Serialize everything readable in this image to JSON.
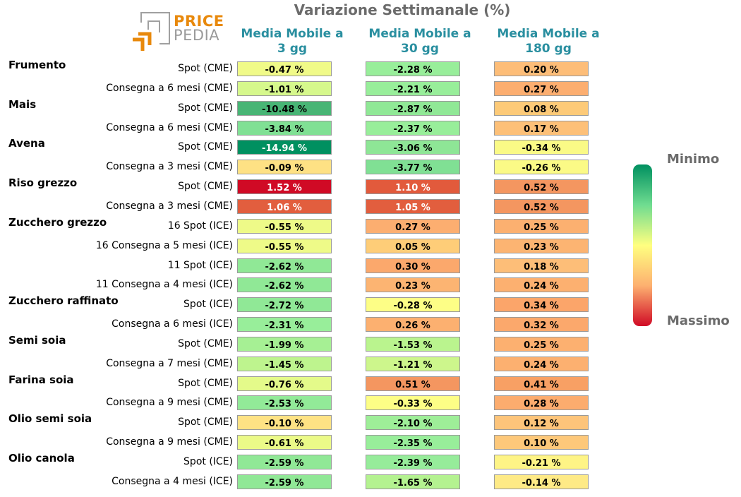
{
  "title": "Variazione Settimanale (%)",
  "logo": {
    "line1": "PRICE",
    "line2": "PEDIA"
  },
  "columns": [
    "Media Mobile a\n3 gg",
    "Media Mobile a\n30 gg",
    "Media Mobile a\n180 gg"
  ],
  "legend": {
    "min_label": "Minimo",
    "max_label": "Massimo",
    "colors": [
      "#009060",
      "#6fdc90",
      "#ffff80",
      "#fdb070",
      "#d00a25"
    ]
  },
  "chart_data": {
    "type": "table",
    "title": "Variazione Settimanale (%)",
    "columns": [
      "Media Mobile a 3 gg",
      "Media Mobile a 30 gg",
      "Media Mobile a 180 gg"
    ],
    "rows": [
      {
        "group": "Frumento",
        "label": "Spot (CME)",
        "display": [
          "-0.47 %",
          "-2.28 %",
          "0.20 %"
        ],
        "colors": [
          "#f0fa88",
          "#98ee9a",
          "#fdbd78"
        ]
      },
      {
        "group": "",
        "label": "Consegna a 6 mesi (CME)",
        "display": [
          "-1.01 %",
          "-2.21 %",
          "0.27 %"
        ],
        "colors": [
          "#d6f88c",
          "#98ee9a",
          "#fcae70"
        ]
      },
      {
        "group": "Mais",
        "label": "Spot (CME)",
        "display": [
          "-10.48 %",
          "-2.87 %",
          "0.08 %"
        ],
        "colors": [
          "#48b575",
          "#90e896",
          "#fdca78"
        ]
      },
      {
        "group": "",
        "label": "Consegna a 6 mesi (CME)",
        "display": [
          "-3.84 %",
          "-2.37 %",
          "0.17 %"
        ],
        "colors": [
          "#80e094",
          "#98ee9a",
          "#fdc078"
        ]
      },
      {
        "group": "Avena",
        "label": "Spot (CME)",
        "display": [
          "-14.94 %",
          "-3.06 %",
          "-0.34 %"
        ],
        "colors": [
          "#009060",
          "#8ee696",
          "#fafa86"
        ]
      },
      {
        "group": "",
        "label": "Consegna a 3 mesi (CME)",
        "display": [
          "-0.09 %",
          "-3.77 %",
          "-0.26 %"
        ],
        "colors": [
          "#fee184",
          "#80e094",
          "#fbfa86"
        ]
      },
      {
        "group": "Riso grezzo",
        "label": "Spot (CME)",
        "display": [
          "1.52 %",
          "1.10 %",
          "0.52 %"
        ],
        "colors": [
          "#d00a25",
          "#e25a3c",
          "#f49660"
        ]
      },
      {
        "group": "",
        "label": "Consegna a 3 mesi (CME)",
        "display": [
          "1.06 %",
          "1.05 %",
          "0.52 %"
        ],
        "colors": [
          "#e25e3e",
          "#e25e3e",
          "#f49660"
        ]
      },
      {
        "group": "Zucchero grezzo",
        "label": "16 Spot (ICE)",
        "display": [
          "-0.55 %",
          "0.27 %",
          "0.25 %"
        ],
        "colors": [
          "#eefa88",
          "#fcae70",
          "#fcb070"
        ]
      },
      {
        "group": "",
        "label": "16 Consegna a 5 mesi (ICE)",
        "display": [
          "-0.55 %",
          "0.05 %",
          "0.23 %"
        ],
        "colors": [
          "#eefa88",
          "#fecd78",
          "#fcb472"
        ]
      },
      {
        "group": "",
        "label": "11 Spot (ICE)",
        "display": [
          "-2.62 %",
          "0.30 %",
          "0.18 %"
        ],
        "colors": [
          "#90e896",
          "#fba86c",
          "#fdbe78"
        ]
      },
      {
        "group": "",
        "label": "11 Consegna a 4 mesi (ICE)",
        "display": [
          "-2.62 %",
          "0.23 %",
          "0.24 %"
        ],
        "colors": [
          "#90e896",
          "#fcb472",
          "#fcb070"
        ]
      },
      {
        "group": "Zucchero raffinato",
        "label": "Spot (ICE)",
        "display": [
          "-2.72 %",
          "-0.28 %",
          "0.34 %"
        ],
        "colors": [
          "#90e896",
          "#fdfe86",
          "#fba56a"
        ]
      },
      {
        "group": "",
        "label": "Consegna a 6 mesi (ICE)",
        "display": [
          "-2.31 %",
          "0.26 %",
          "0.32 %"
        ],
        "colors": [
          "#98ee9a",
          "#fcb070",
          "#fba86c"
        ]
      },
      {
        "group": "Semi soia",
        "label": "Spot (CME)",
        "display": [
          "-1.99 %",
          "-1.53 %",
          "0.25 %"
        ],
        "colors": [
          "#a6f094",
          "#baf48e",
          "#fcb070"
        ]
      },
      {
        "group": "",
        "label": "Consegna a 7 mesi (CME)",
        "display": [
          "-1.45 %",
          "-1.21 %",
          "0.24 %"
        ],
        "colors": [
          "#bef48e",
          "#cdf68c",
          "#fcb070"
        ]
      },
      {
        "group": "Farina soia",
        "label": "Spot (CME)",
        "display": [
          "-0.76 %",
          "0.51 %",
          "0.41 %"
        ],
        "colors": [
          "#e4fa8a",
          "#f49660",
          "#f8a064"
        ]
      },
      {
        "group": "",
        "label": "Consegna a 9 mesi (CME)",
        "display": [
          "-2.53 %",
          "-0.33 %",
          "0.28 %"
        ],
        "colors": [
          "#92ea98",
          "#fdfe86",
          "#fcac6e"
        ]
      },
      {
        "group": "Olio semi soia",
        "label": "Spot (CME)",
        "display": [
          "-0.10 %",
          "-2.10 %",
          "0.12 %"
        ],
        "colors": [
          "#fee284",
          "#9eee98",
          "#fdc47a"
        ]
      },
      {
        "group": "",
        "label": "Consegna a 9 mesi (CME)",
        "display": [
          "-0.61 %",
          "-2.35 %",
          "0.10 %"
        ],
        "colors": [
          "#ebfa88",
          "#98ee9a",
          "#fdc87a"
        ]
      },
      {
        "group": "Olio canola",
        "label": "Spot (ICE)",
        "display": [
          "-2.59 %",
          "-2.39 %",
          "-0.21 %"
        ],
        "colors": [
          "#90e896",
          "#96ec9a",
          "#fef486"
        ]
      },
      {
        "group": "",
        "label": "Consegna a 4 mesi (ICE)",
        "display": [
          "-2.59 %",
          "-1.65 %",
          "-0.14 %"
        ],
        "colors": [
          "#90e896",
          "#b4f290",
          "#feea86"
        ]
      }
    ]
  }
}
